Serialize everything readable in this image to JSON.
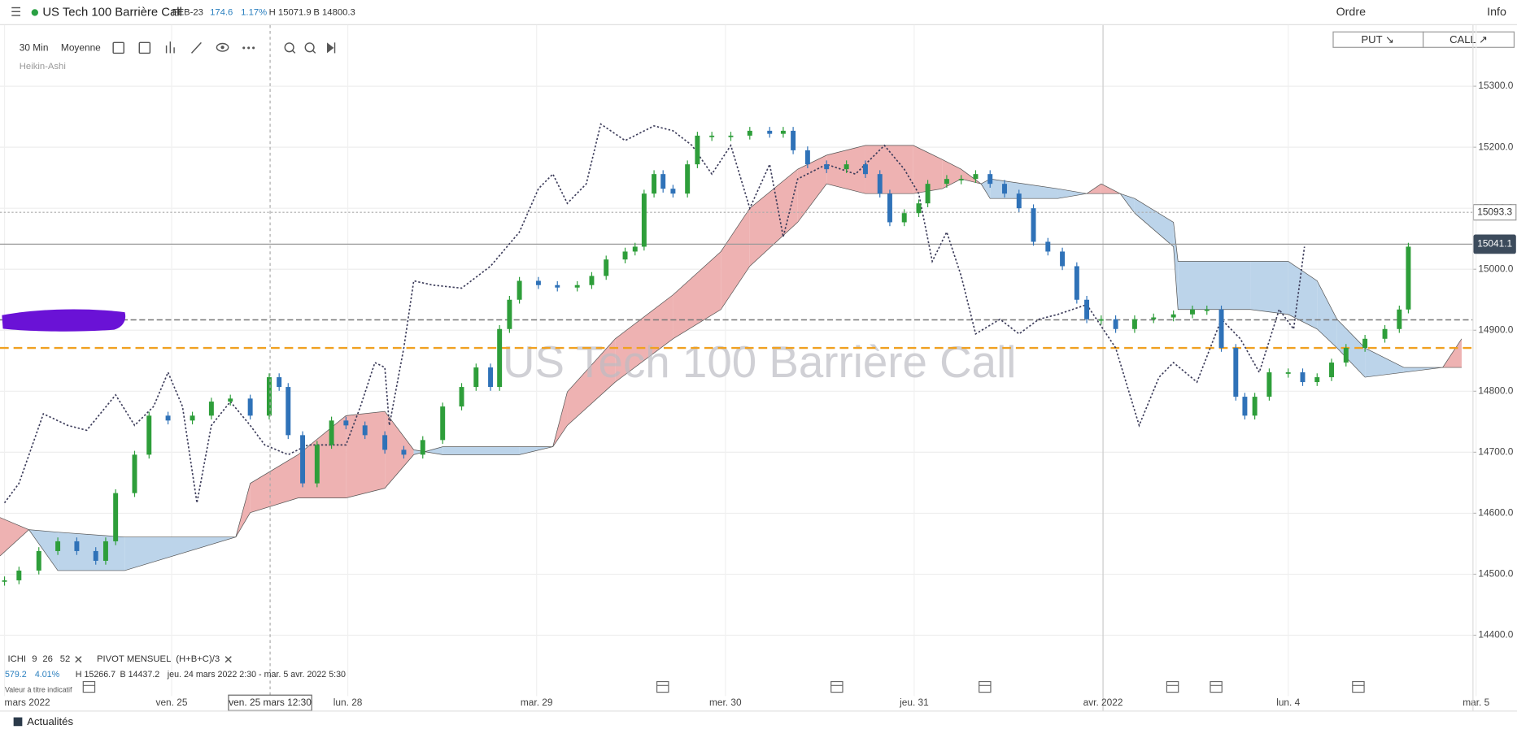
{
  "header": {
    "instrument": "US Tech 100 Barrière Call",
    "expiry": "FEB-23",
    "change": "174.6",
    "change_pct": "1.17%",
    "high": "H 15071.9",
    "low": "B 14800.3",
    "order": "Ordre",
    "info": "Info"
  },
  "trade_buttons": {
    "put": "PUT ↘",
    "call": "CALL ↗"
  },
  "toolbar": {
    "interval": "30 Min",
    "mode": "Moyenne",
    "chart_style": "Heikin-Ashi"
  },
  "indicators": {
    "ichimoku": "ICHI",
    "ichimoku_params": [
      "9",
      "26",
      "52"
    ],
    "pivot": "PIVOT",
    "pivot_params": "MENSUEL  (H+B+C)/3"
  },
  "range_info": {
    "change": "579.2",
    "change_pct": "4.01%",
    "high": "H 15266.7",
    "low": "B 14437.2",
    "period": "jeu. 24 mars 2022 2:30 - mar. 5 avr. 2022 5:30",
    "note": "Valeur à titre indicatif"
  },
  "crosshair_label": "ven. 25 mars 12:30",
  "news": "Actualités",
  "chart_data": {
    "type": "candlestick",
    "watermark": "US Tech 100 Barrière Call",
    "xlim": [
      0,
      163
    ],
    "xticks": [
      {
        "value": 0.5,
        "label": "mars 2022"
      },
      {
        "value": 19,
        "label": "ven. 25"
      },
      {
        "value": 38.5,
        "label": "lun. 28"
      },
      {
        "value": 59.4,
        "label": "mar. 29"
      },
      {
        "value": 80.3,
        "label": "mer. 30"
      },
      {
        "value": 101.2,
        "label": "jeu. 31"
      },
      {
        "value": 122.1,
        "label": "avr. 2022"
      },
      {
        "value": 142.6,
        "label": "lun. 4"
      },
      {
        "value": 163.4,
        "label": "mar. 5"
      }
    ],
    "separator_x": 122.1,
    "crosshair_x": 29.9,
    "ylim": [
      14324,
      15397
    ],
    "yticks": [
      {
        "value": 14400,
        "label": "14400.0"
      },
      {
        "value": 14500,
        "label": "14500.0"
      },
      {
        "value": 14600,
        "label": "14600.0"
      },
      {
        "value": 14700,
        "label": "14700.0"
      },
      {
        "value": 14800,
        "label": "14800.0"
      },
      {
        "value": 14900,
        "label": "14900.0"
      },
      {
        "value": 15000,
        "label": "15000.0"
      },
      {
        "value": 15100,
        "label": "15100.0"
      },
      {
        "value": 15200,
        "label": "15200.0"
      },
      {
        "value": 15300,
        "label": "15300.0"
      }
    ],
    "grid": true,
    "close": {
      "up_color": "#2e9e3a",
      "down_color": "#2f72b8",
      "x": [
        0.5,
        2.1,
        4.3,
        6.4,
        8.5,
        10.6,
        11.7,
        12.8,
        14.9,
        16.5,
        18.6,
        21.3,
        23.4,
        25.5,
        27.7,
        29.8,
        30.9,
        31.9,
        33.5,
        35.1,
        36.7,
        38.3,
        40.4,
        42.6,
        44.7,
        46.8,
        49.0,
        51.1,
        52.7,
        54.3,
        55.3,
        56.4,
        57.5,
        59.6,
        61.7,
        63.9,
        65.5,
        67.1,
        69.2,
        70.3,
        71.3,
        72.4,
        73.4,
        74.5,
        76.1,
        77.2,
        78.8,
        80.9,
        83.0,
        85.2,
        86.7,
        87.8,
        89.4,
        91.5,
        93.7,
        95.8,
        97.4,
        98.5,
        100.1,
        101.7,
        102.7,
        104.8,
        106.4,
        108.0,
        109.6,
        111.2,
        112.8,
        114.4,
        116.0,
        117.6,
        119.2,
        120.3,
        121.9,
        123.5,
        125.6,
        127.7,
        129.9,
        132.0,
        133.6,
        135.2,
        136.8,
        137.8,
        138.9,
        140.5,
        142.6,
        144.2,
        145.8,
        147.4,
        149.0,
        151.1,
        153.3,
        154.9,
        155.9
      ],
      "values": [
        14490,
        14506,
        14538,
        14554,
        14538,
        14522,
        14554,
        14633,
        14696,
        14760,
        14752,
        14760,
        14783,
        14788,
        14760,
        14823,
        14807,
        14728,
        14649,
        14712,
        14752,
        14744,
        14728,
        14704,
        14696,
        14720,
        14775,
        14807,
        14839,
        14807,
        14902,
        14950,
        14981,
        14974,
        14970,
        14974,
        14989,
        15016,
        15029,
        15037,
        15124,
        15156,
        15132,
        15124,
        15172,
        15219,
        15219,
        15219,
        15227,
        15222,
        15227,
        15195,
        15172,
        15164,
        15172,
        15156,
        15124,
        15077,
        15092,
        15108,
        15140,
        15148,
        15148,
        15156,
        15140,
        15124,
        15100,
        15045,
        15029,
        15005,
        14950,
        14918,
        14918,
        14902,
        14918,
        14921,
        14926,
        14934,
        14934,
        14871,
        14791,
        14760,
        14791,
        14831,
        14831,
        14815,
        14823,
        14847,
        14871,
        14886,
        14902,
        14934,
        15037
      ]
    },
    "cloud": {
      "up_color": "#bcd4ea",
      "down_color": "#eeb2b2",
      "edge_color": "#555555",
      "x": [
        0,
        3.2,
        6.4,
        13.8,
        26.1,
        27.7,
        33.0,
        38.3,
        42.6,
        45.8,
        49.0,
        57.5,
        61.2,
        62.8,
        68.1,
        74.5,
        79.8,
        83.0,
        88.3,
        91.5,
        95.8,
        101.1,
        104.3,
        106.4,
        108.6,
        109.6,
        117.1,
        120.3,
        121.9,
        124.0,
        125.6,
        129.9,
        130.4,
        138.4,
        142.6,
        145.8,
        148.0,
        151.1,
        155.4,
        159.7,
        161.8
      ],
      "span_a": [
        14530,
        14573,
        14569,
        14561,
        14561,
        14601,
        14625,
        14625,
        14641,
        14696,
        14709,
        14709,
        14709,
        14744,
        14815,
        14886,
        14934,
        15005,
        15077,
        15140,
        15124,
        15124,
        15132,
        15148,
        15140,
        15148,
        15132,
        15124,
        15124,
        15124,
        15116,
        15077,
        15013,
        15013,
        15013,
        14981,
        14918,
        14871,
        14839,
        14839,
        14839
      ],
      "span_b": [
        14593,
        14573,
        14506,
        14506,
        14561,
        14649,
        14696,
        14760,
        14767,
        14704,
        14696,
        14696,
        14709,
        14799,
        14886,
        14958,
        15029,
        15100,
        15164,
        15187,
        15203,
        15203,
        15180,
        15164,
        15140,
        15116,
        15116,
        15124,
        15140,
        15124,
        15092,
        15037,
        14934,
        14934,
        14926,
        14902,
        14871,
        14823,
        14831,
        14839,
        14886
      ]
    },
    "lagging_span": {
      "color": "#3c3c5a",
      "x": [
        0.5,
        2.1,
        4.8,
        7.5,
        9.6,
        12.8,
        14.9,
        17.0,
        18.6,
        20.2,
        21.8,
        23.4,
        25.5,
        27.7,
        29.3,
        31.9,
        34.1,
        38.3,
        39.9,
        41.5,
        42.6,
        43.1,
        44.7,
        45.8,
        47.9,
        51.1,
        54.3,
        57.5,
        59.6,
        61.2,
        62.8,
        64.9,
        66.5,
        69.2,
        72.4,
        74.5,
        76.6,
        78.8,
        80.9,
        83.0,
        85.2,
        86.7,
        88.3,
        91.5,
        94.7,
        97.9,
        100.1,
        101.7,
        103.2,
        104.8,
        106.4,
        108.0,
        110.7,
        112.8,
        115.0,
        117.1,
        120.3,
        123.5,
        126.1,
        128.3,
        129.9,
        132.5,
        135.2,
        137.3,
        139.4,
        141.6,
        143.2,
        144.4
      ],
      "values": [
        14617,
        14649,
        14763,
        14744,
        14736,
        14794,
        14744,
        14775,
        14831,
        14775,
        14617,
        14744,
        14783,
        14744,
        14712,
        14696,
        14712,
        14712,
        14775,
        14847,
        14839,
        14744,
        14871,
        14981,
        14974,
        14969,
        15005,
        15061,
        15132,
        15156,
        15108,
        15140,
        15238,
        15211,
        15235,
        15227,
        15203,
        15156,
        15203,
        15100,
        15172,
        15053,
        15148,
        15172,
        15156,
        15203,
        15164,
        15124,
        15013,
        15061,
        14989,
        14894,
        14918,
        14894,
        14918,
        14926,
        14942,
        14871,
        14744,
        14823,
        14847,
        14815,
        14918,
        14886,
        14831,
        14934,
        14902,
        15037
      ]
    },
    "reference_price": 15093.3,
    "last_price": 15041.1,
    "last_price_color": "#3c4b5c",
    "pivot_level": 14871,
    "pivot_color": "#f0a020",
    "dashed_level": 14917
  }
}
